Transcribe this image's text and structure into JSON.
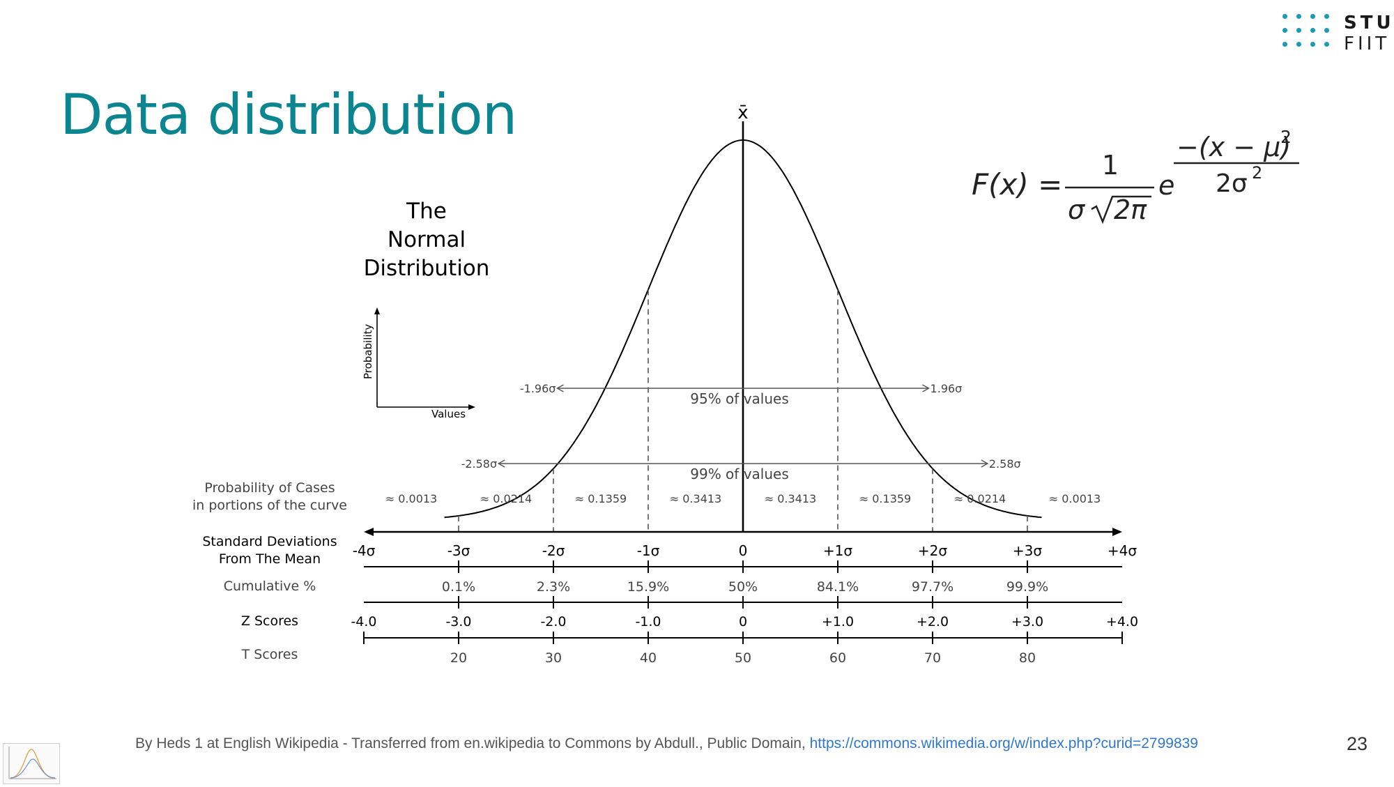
{
  "slide": {
    "title": "Data distribution",
    "page_number": "23",
    "credit_text": "By Heds 1 at English Wikipedia - Transferred from en.wikipedia to Commons by Abdull., Public Domain, ",
    "credit_link": "https://commons.wikimedia.org/w/index.php?curid=2799839"
  },
  "logo": {
    "line1": "STU",
    "line2": "FIIT",
    "color": "#1a9bb5"
  },
  "formula": {
    "lhs": "F(x) =",
    "numerator": "1",
    "sigma": "σ",
    "root": "2π",
    "e": "e",
    "exp_numerator": "−(x − μ)",
    "exp_power": "2",
    "exp_denominator": "2σ",
    "exp_denominator_power": "2"
  },
  "diagram": {
    "title_lines": [
      "The",
      "Normal",
      "Distribution"
    ],
    "mean_symbol": "x̄",
    "inset_ylabel": "Probability",
    "inset_xlabel": "Values",
    "ranges": [
      {
        "label": "95% of values",
        "left": "-1.96σ",
        "right": "1.96σ",
        "sd": 1.96
      },
      {
        "label": "99% of values",
        "left": "-2.58σ",
        "right": "2.58σ",
        "sd": 2.58
      }
    ],
    "probability_label": [
      "Probability of Cases",
      "in portions of the curve"
    ],
    "probabilities": [
      "≈ 0.0013",
      "≈ 0.0214",
      "≈ 0.1359",
      "≈ 0.3413",
      "≈ 0.3413",
      "≈ 0.1359",
      "≈ 0.0214",
      "≈ 0.0013"
    ],
    "sd_label": [
      "Standard Deviations",
      "From The Mean"
    ],
    "sd_ticks": [
      "-4σ",
      "-3σ",
      "-2σ",
      "-1σ",
      "0",
      "+1σ",
      "+2σ",
      "+3σ",
      "+4σ"
    ],
    "cumulative_label": "Cumulative %",
    "cumulative": [
      "0.1%",
      "2.3%",
      "15.9%",
      "50%",
      "84.1%",
      "97.7%",
      "99.9%"
    ],
    "z_label": "Z Scores",
    "z_scores": [
      "-4.0",
      "-3.0",
      "-2.0",
      "-1.0",
      "0",
      "+1.0",
      "+2.0",
      "+3.0",
      "+4.0"
    ],
    "t_label": "T Scores",
    "t_scores": [
      "20",
      "30",
      "40",
      "50",
      "60",
      "70",
      "80"
    ]
  }
}
